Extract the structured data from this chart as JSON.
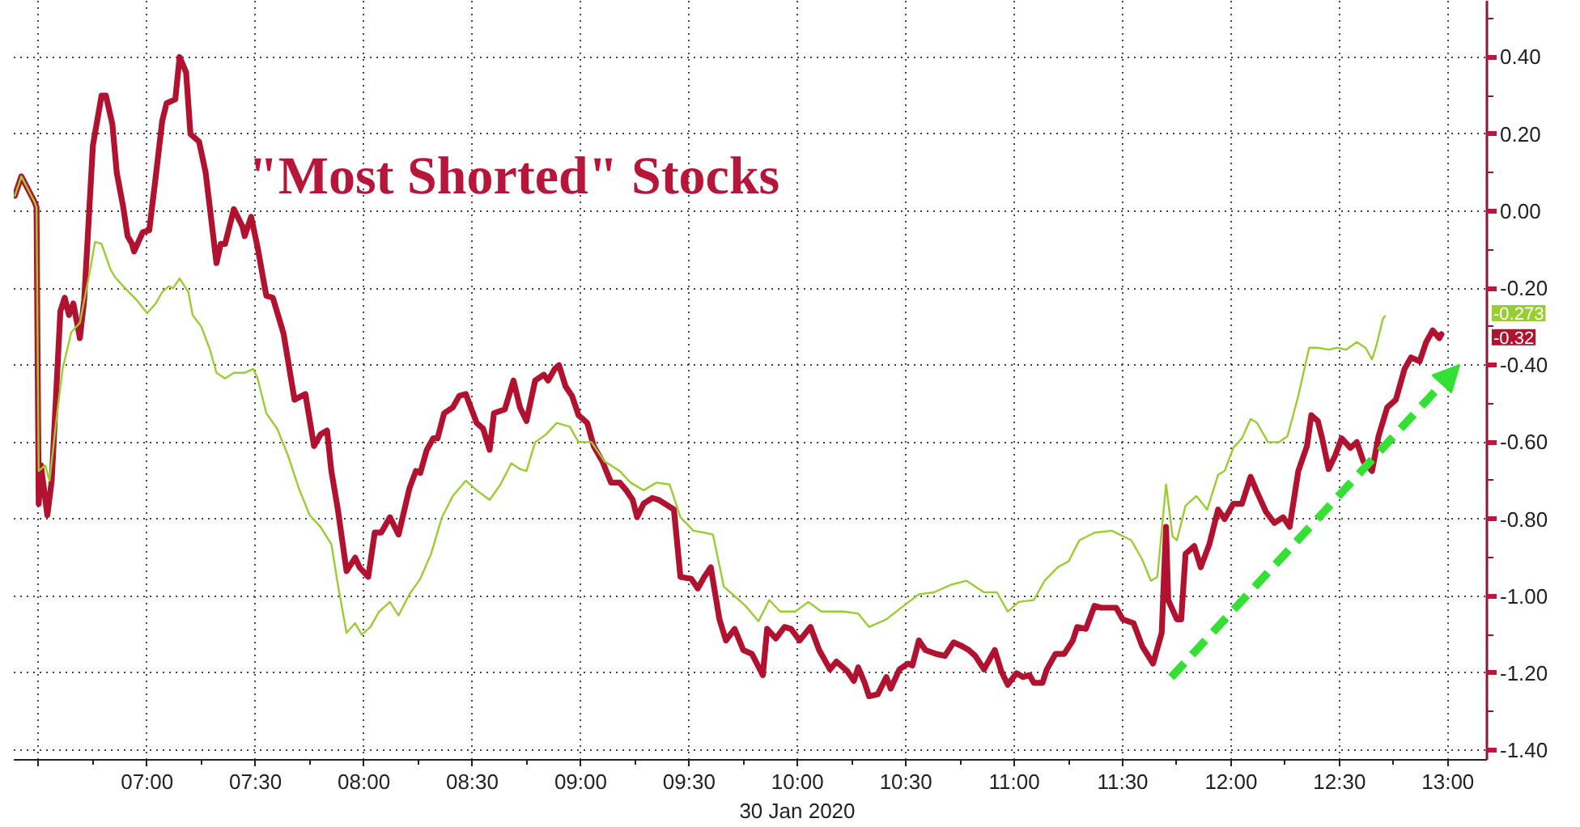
{
  "chart_data": {
    "type": "line",
    "title": "\"Most Shorted\" Stocks",
    "xlabel": "30 Jan 2020",
    "xlim": [
      6.385,
      13.18
    ],
    "ylim": [
      -1.425,
      0.546
    ],
    "xticks": [
      {
        "value": 6.5,
        "label": null
      },
      {
        "value": 7,
        "label": "07:00"
      },
      {
        "value": 7.5,
        "label": "07:30"
      },
      {
        "value": 8,
        "label": "08:00"
      },
      {
        "value": 8.5,
        "label": "08:30"
      },
      {
        "value": 9,
        "label": "09:00"
      },
      {
        "value": 9.5,
        "label": "09:30"
      },
      {
        "value": 10,
        "label": "10:00"
      },
      {
        "value": 10.5,
        "label": "10:30"
      },
      {
        "value": 11,
        "label": "11:00"
      },
      {
        "value": 11.5,
        "label": "11:30"
      },
      {
        "value": 12,
        "label": "12:00"
      },
      {
        "value": 12.5,
        "label": "12:30"
      },
      {
        "value": 13,
        "label": "13:00"
      }
    ],
    "yticks": [
      {
        "value": 0.4,
        "label": "0.40"
      },
      {
        "value": 0.2,
        "label": "0.20"
      },
      {
        "value": 0,
        "label": "0.00"
      },
      {
        "value": -0.2,
        "label": "-0.20"
      },
      {
        "value": -0.4,
        "label": "-0.40"
      },
      {
        "value": -0.6,
        "label": "-0.60"
      },
      {
        "value": -0.8,
        "label": "-0.80"
      },
      {
        "value": -1.0,
        "label": "-1.00"
      },
      {
        "value": -1.2,
        "label": "-1.20"
      },
      {
        "value": -1.4,
        "label": "-1.40"
      }
    ],
    "grid": true,
    "annotations": [
      "-0.32",
      "-0.273"
    ],
    "series": [
      {
        "color": "#b0122f",
        "x": [
          6.39,
          6.42,
          6.48,
          6.49,
          6.5,
          6.51,
          6.54,
          6.56,
          6.6,
          6.62,
          6.64,
          6.66,
          6.69,
          6.71,
          6.75,
          6.79,
          6.81,
          6.84,
          6.86,
          6.89,
          6.91,
          6.93,
          6.94,
          6.98,
          7.01,
          7.04,
          7.07,
          7.09,
          7.13,
          7.15,
          7.18,
          7.2,
          7.24,
          7.27,
          7.32,
          7.34,
          7.36,
          7.4,
          7.44,
          7.45,
          7.48,
          7.51,
          7.55,
          7.58,
          7.62,
          7.63,
          7.68,
          7.73,
          7.77,
          7.8,
          7.83,
          7.85,
          7.88,
          7.92,
          7.96,
          7.98,
          8.02,
          8.05,
          8.08,
          8.12,
          8.16,
          8.21,
          8.24,
          8.26,
          8.29,
          8.32,
          8.34,
          8.37,
          8.41,
          8.44,
          8.47,
          8.52,
          8.55,
          8.58,
          8.6,
          8.65,
          8.69,
          8.72,
          8.75,
          8.79,
          8.83,
          8.85,
          8.88,
          8.9,
          8.93,
          8.96,
          8.99,
          9.03,
          9.06,
          9.1,
          9.14,
          9.18,
          9.21,
          9.24,
          9.26,
          9.29,
          9.33,
          9.36,
          9.43,
          9.46,
          9.51,
          9.54,
          9.57,
          9.6,
          9.64,
          9.67,
          9.71,
          9.75,
          9.79,
          9.84,
          9.86,
          9.9,
          9.94,
          9.97,
          10.01,
          10.06,
          10.1,
          10.15,
          10.18,
          10.23,
          10.26,
          10.28,
          10.31,
          10.33,
          10.37,
          10.41,
          10.43,
          10.47,
          10.51,
          10.53,
          10.56,
          10.59,
          10.64,
          10.68,
          10.72,
          10.76,
          10.79,
          10.82,
          10.86,
          10.91,
          10.94,
          10.97,
          11.01,
          11.04,
          11.07,
          11.09,
          11.13,
          11.15,
          11.19,
          11.23,
          11.27,
          11.29,
          11.33,
          11.37,
          11.4,
          11.47,
          11.5,
          11.55,
          11.59,
          11.64,
          11.68,
          11.7,
          11.71,
          11.75,
          11.77,
          11.79,
          11.83,
          11.86,
          11.9,
          11.94,
          11.97,
          12.01,
          12.05,
          12.09,
          12.12,
          12.16,
          12.2,
          12.24,
          12.27,
          12.31,
          12.35,
          12.37,
          12.4,
          12.42,
          12.45,
          12.48,
          12.51,
          12.55,
          12.58,
          12.61,
          12.65,
          12.68,
          12.72,
          12.76,
          12.8,
          12.83,
          12.87,
          12.9,
          12.93,
          12.96,
          12.97
        ],
        "values": [
          0.04,
          0.09,
          0.025,
          0.01,
          -0.76,
          -0.66,
          -0.79,
          -0.7,
          -0.26,
          -0.225,
          -0.27,
          -0.24,
          -0.33,
          -0.23,
          0.17,
          0.3,
          0.3,
          0.225,
          0.1,
          0.01,
          -0.065,
          -0.085,
          -0.105,
          -0.055,
          -0.05,
          0.09,
          0.235,
          0.28,
          0.29,
          0.4,
          0.36,
          0.2,
          0.18,
          0.1,
          -0.135,
          -0.085,
          -0.085,
          0.005,
          -0.04,
          -0.065,
          -0.015,
          -0.095,
          -0.22,
          -0.225,
          -0.3,
          -0.32,
          -0.49,
          -0.475,
          -0.61,
          -0.58,
          -0.57,
          -0.675,
          -0.775,
          -0.935,
          -0.9,
          -0.925,
          -0.95,
          -0.835,
          -0.835,
          -0.795,
          -0.84,
          -0.72,
          -0.675,
          -0.68,
          -0.62,
          -0.59,
          -0.59,
          -0.525,
          -0.51,
          -0.48,
          -0.475,
          -0.55,
          -0.565,
          -0.62,
          -0.525,
          -0.515,
          -0.44,
          -0.51,
          -0.545,
          -0.44,
          -0.425,
          -0.44,
          -0.41,
          -0.4,
          -0.455,
          -0.48,
          -0.53,
          -0.55,
          -0.61,
          -0.65,
          -0.705,
          -0.705,
          -0.725,
          -0.75,
          -0.795,
          -0.76,
          -0.745,
          -0.75,
          -0.775,
          -0.95,
          -0.955,
          -0.98,
          -0.95,
          -0.925,
          -1.06,
          -1.115,
          -1.085,
          -1.14,
          -1.15,
          -1.205,
          -1.085,
          -1.11,
          -1.08,
          -1.085,
          -1.115,
          -1.08,
          -1.14,
          -1.19,
          -1.17,
          -1.195,
          -1.22,
          -1.185,
          -1.225,
          -1.26,
          -1.255,
          -1.21,
          -1.24,
          -1.19,
          -1.175,
          -1.18,
          -1.115,
          -1.14,
          -1.15,
          -1.155,
          -1.12,
          -1.13,
          -1.14,
          -1.155,
          -1.19,
          -1.14,
          -1.195,
          -1.23,
          -1.2,
          -1.21,
          -1.205,
          -1.225,
          -1.225,
          -1.19,
          -1.15,
          -1.15,
          -1.115,
          -1.08,
          -1.085,
          -1.025,
          -1.03,
          -1.03,
          -1.06,
          -1.07,
          -1.13,
          -1.175,
          -1.095,
          -0.82,
          -1.01,
          -1.06,
          -1.06,
          -0.89,
          -0.87,
          -0.925,
          -0.865,
          -0.775,
          -0.8,
          -0.76,
          -0.76,
          -0.69,
          -0.73,
          -0.78,
          -0.81,
          -0.795,
          -0.82,
          -0.675,
          -0.61,
          -0.53,
          -0.545,
          -0.59,
          -0.67,
          -0.635,
          -0.59,
          -0.615,
          -0.6,
          -0.65,
          -0.675,
          -0.585,
          -0.51,
          -0.49,
          -0.41,
          -0.38,
          -0.39,
          -0.34,
          -0.31,
          -0.33,
          -0.32
        ]
      },
      {
        "color": "#9acd32",
        "x": [
          6.39,
          6.42,
          6.48,
          6.49,
          6.5,
          6.53,
          6.55,
          6.58,
          6.61,
          6.65,
          6.69,
          6.73,
          6.76,
          6.79,
          6.83,
          6.85,
          6.89,
          6.95,
          7.0,
          7.04,
          7.07,
          7.1,
          7.12,
          7.15,
          7.19,
          7.21,
          7.25,
          7.29,
          7.32,
          7.36,
          7.4,
          7.45,
          7.49,
          7.51,
          7.55,
          7.6,
          7.65,
          7.7,
          7.75,
          7.8,
          7.85,
          7.88,
          7.92,
          7.96,
          7.99,
          8.03,
          8.07,
          8.12,
          8.16,
          8.21,
          8.26,
          8.31,
          8.36,
          8.41,
          8.47,
          8.52,
          8.58,
          8.63,
          8.68,
          8.72,
          8.75,
          8.79,
          8.84,
          8.89,
          8.95,
          8.99,
          9.05,
          9.11,
          9.18,
          9.23,
          9.29,
          9.35,
          9.41,
          9.46,
          9.52,
          9.57,
          9.61,
          9.66,
          9.71,
          9.76,
          9.82,
          9.87,
          9.92,
          9.99,
          10.05,
          10.11,
          10.21,
          10.28,
          10.33,
          10.41,
          10.49,
          10.56,
          10.63,
          10.71,
          10.78,
          10.86,
          10.92,
          10.97,
          11.02,
          11.09,
          11.14,
          11.2,
          11.25,
          11.3,
          11.37,
          11.45,
          11.54,
          11.59,
          11.63,
          11.66,
          11.7,
          11.73,
          11.75,
          11.79,
          11.84,
          11.89,
          11.94,
          11.97,
          12.01,
          12.05,
          12.09,
          12.12,
          12.17,
          12.22,
          12.26,
          12.31,
          12.36,
          12.4,
          12.45,
          12.49,
          12.53,
          12.58,
          12.62,
          12.65,
          12.67,
          12.7,
          12.71
        ],
        "values": [
          0.04,
          0.09,
          0.025,
          0.01,
          -0.675,
          -0.66,
          -0.7,
          -0.55,
          -0.41,
          -0.315,
          -0.29,
          -0.175,
          -0.08,
          -0.085,
          -0.15,
          -0.17,
          -0.195,
          -0.23,
          -0.265,
          -0.24,
          -0.21,
          -0.195,
          -0.2,
          -0.175,
          -0.21,
          -0.27,
          -0.3,
          -0.36,
          -0.42,
          -0.435,
          -0.42,
          -0.42,
          -0.41,
          -0.435,
          -0.525,
          -0.565,
          -0.635,
          -0.72,
          -0.79,
          -0.82,
          -0.865,
          -0.97,
          -1.095,
          -1.07,
          -1.1,
          -1.08,
          -1.04,
          -1.015,
          -1.05,
          -0.995,
          -0.955,
          -0.89,
          -0.795,
          -0.74,
          -0.7,
          -0.725,
          -0.75,
          -0.71,
          -0.655,
          -0.67,
          -0.675,
          -0.6,
          -0.58,
          -0.55,
          -0.56,
          -0.6,
          -0.6,
          -0.65,
          -0.675,
          -0.705,
          -0.725,
          -0.705,
          -0.71,
          -0.795,
          -0.83,
          -0.835,
          -0.84,
          -0.975,
          -1.0,
          -1.025,
          -1.065,
          -1.01,
          -1.04,
          -1.04,
          -1.015,
          -1.04,
          -1.04,
          -1.045,
          -1.08,
          -1.06,
          -1.025,
          -0.995,
          -0.99,
          -0.97,
          -0.96,
          -0.99,
          -0.99,
          -1.04,
          -1.015,
          -1.01,
          -0.96,
          -0.925,
          -0.91,
          -0.855,
          -0.835,
          -0.83,
          -0.855,
          -0.905,
          -0.96,
          -0.95,
          -0.71,
          -0.845,
          -0.855,
          -0.765,
          -0.74,
          -0.775,
          -0.685,
          -0.675,
          -0.615,
          -0.59,
          -0.54,
          -0.55,
          -0.6,
          -0.6,
          -0.585,
          -0.48,
          -0.355,
          -0.355,
          -0.36,
          -0.355,
          -0.36,
          -0.34,
          -0.355,
          -0.385,
          -0.35,
          -0.28,
          -0.273
        ]
      }
    ]
  }
}
